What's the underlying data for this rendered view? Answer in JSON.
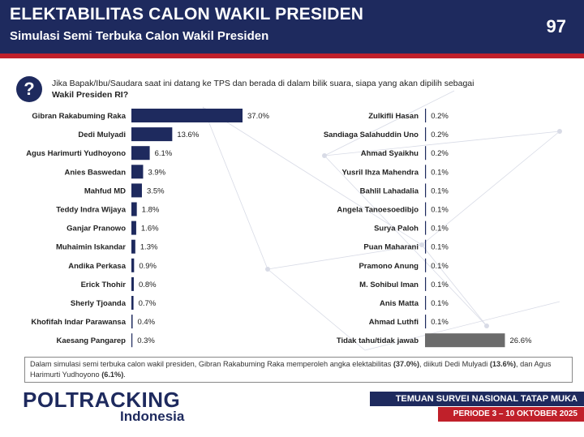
{
  "header": {
    "title": "ELEKTABILITAS CALON WAKIL PRESIDEN",
    "subtitle": "Simulasi Semi Terbuka Calon Wakil Presiden",
    "page_number": "97"
  },
  "question": {
    "icon": "?",
    "text": "Jika Bapak/Ibu/Saudara saat ini datang ke TPS dan berada di dalam bilik suara, siapa yang akan dipilih sebagai",
    "bold": "Wakil Presiden RI?"
  },
  "chart_data": {
    "type": "bar",
    "orientation": "horizontal",
    "unit": "%",
    "colors": {
      "candidate": "#1e2a5e",
      "undecided": "#6b6b6b"
    },
    "left": [
      {
        "label": "Gibran Rakabuming Raka",
        "value": 37.0,
        "text": "37.0%"
      },
      {
        "label": "Dedi Mulyadi",
        "value": 13.6,
        "text": "13.6%"
      },
      {
        "label": "Agus Harimurti Yudhoyono",
        "value": 6.1,
        "text": "6.1%"
      },
      {
        "label": "Anies Baswedan",
        "value": 3.9,
        "text": "3.9%"
      },
      {
        "label": "Mahfud MD",
        "value": 3.5,
        "text": "3.5%"
      },
      {
        "label": "Teddy Indra Wijaya",
        "value": 1.8,
        "text": "1.8%"
      },
      {
        "label": "Ganjar Pranowo",
        "value": 1.6,
        "text": "1.6%"
      },
      {
        "label": "Muhaimin Iskandar",
        "value": 1.3,
        "text": "1.3%"
      },
      {
        "label": "Andika Perkasa",
        "value": 0.9,
        "text": "0.9%"
      },
      {
        "label": "Erick Thohir",
        "value": 0.8,
        "text": "0.8%"
      },
      {
        "label": "Sherly Tjoanda",
        "value": 0.7,
        "text": "0.7%"
      },
      {
        "label": "Khofifah Indar Parawansa",
        "value": 0.4,
        "text": "0.4%"
      },
      {
        "label": "Kaesang Pangarep",
        "value": 0.3,
        "text": "0.3%"
      }
    ],
    "right": [
      {
        "label": "Zulkifli Hasan",
        "value": 0.2,
        "text": "0.2%"
      },
      {
        "label": "Sandiaga Salahuddin Uno",
        "value": 0.2,
        "text": "0.2%"
      },
      {
        "label": "Ahmad Syaikhu",
        "value": 0.2,
        "text": "0.2%"
      },
      {
        "label": "Yusril Ihza Mahendra",
        "value": 0.1,
        "text": "0.1%"
      },
      {
        "label": "Bahlil Lahadalia",
        "value": 0.1,
        "text": "0.1%"
      },
      {
        "label": "Angela Tanoesoedibjo",
        "value": 0.1,
        "text": "0.1%"
      },
      {
        "label": "Surya Paloh",
        "value": 0.1,
        "text": "0.1%"
      },
      {
        "label": "Puan Maharani",
        "value": 0.1,
        "text": "0.1%"
      },
      {
        "label": "Pramono Anung",
        "value": 0.1,
        "text": "0.1%"
      },
      {
        "label": "M. Sohibul Iman",
        "value": 0.1,
        "text": "0.1%"
      },
      {
        "label": "Anis Matta",
        "value": 0.1,
        "text": "0.1%"
      },
      {
        "label": "Ahmad Luthfi",
        "value": 0.1,
        "text": "0.1%"
      },
      {
        "label": "Tidak tahu/tidak jawab",
        "value": 26.6,
        "text": "26.6%",
        "undecided": true
      }
    ]
  },
  "summary": {
    "part1": "Dalam simulasi semi terbuka calon wakil presiden, Gibran Rakabuming Raka memperoleh angka elektabilitas ",
    "bold1": "(37.0%)",
    "part2": ", diikuti Dedi Mulyadi ",
    "bold2": "(13.6%)",
    "part3": ", dan Agus Harimurti Yudhoyono ",
    "bold3": "(6.1%)",
    "part4": "."
  },
  "footer": {
    "logo_main": "POLTRACKING",
    "logo_sub": "Indonesia",
    "survey": "TEMUAN SURVEI NASIONAL TATAP MUKA",
    "period": "PERIODE 3 – 10 OKTOBER 2025"
  }
}
